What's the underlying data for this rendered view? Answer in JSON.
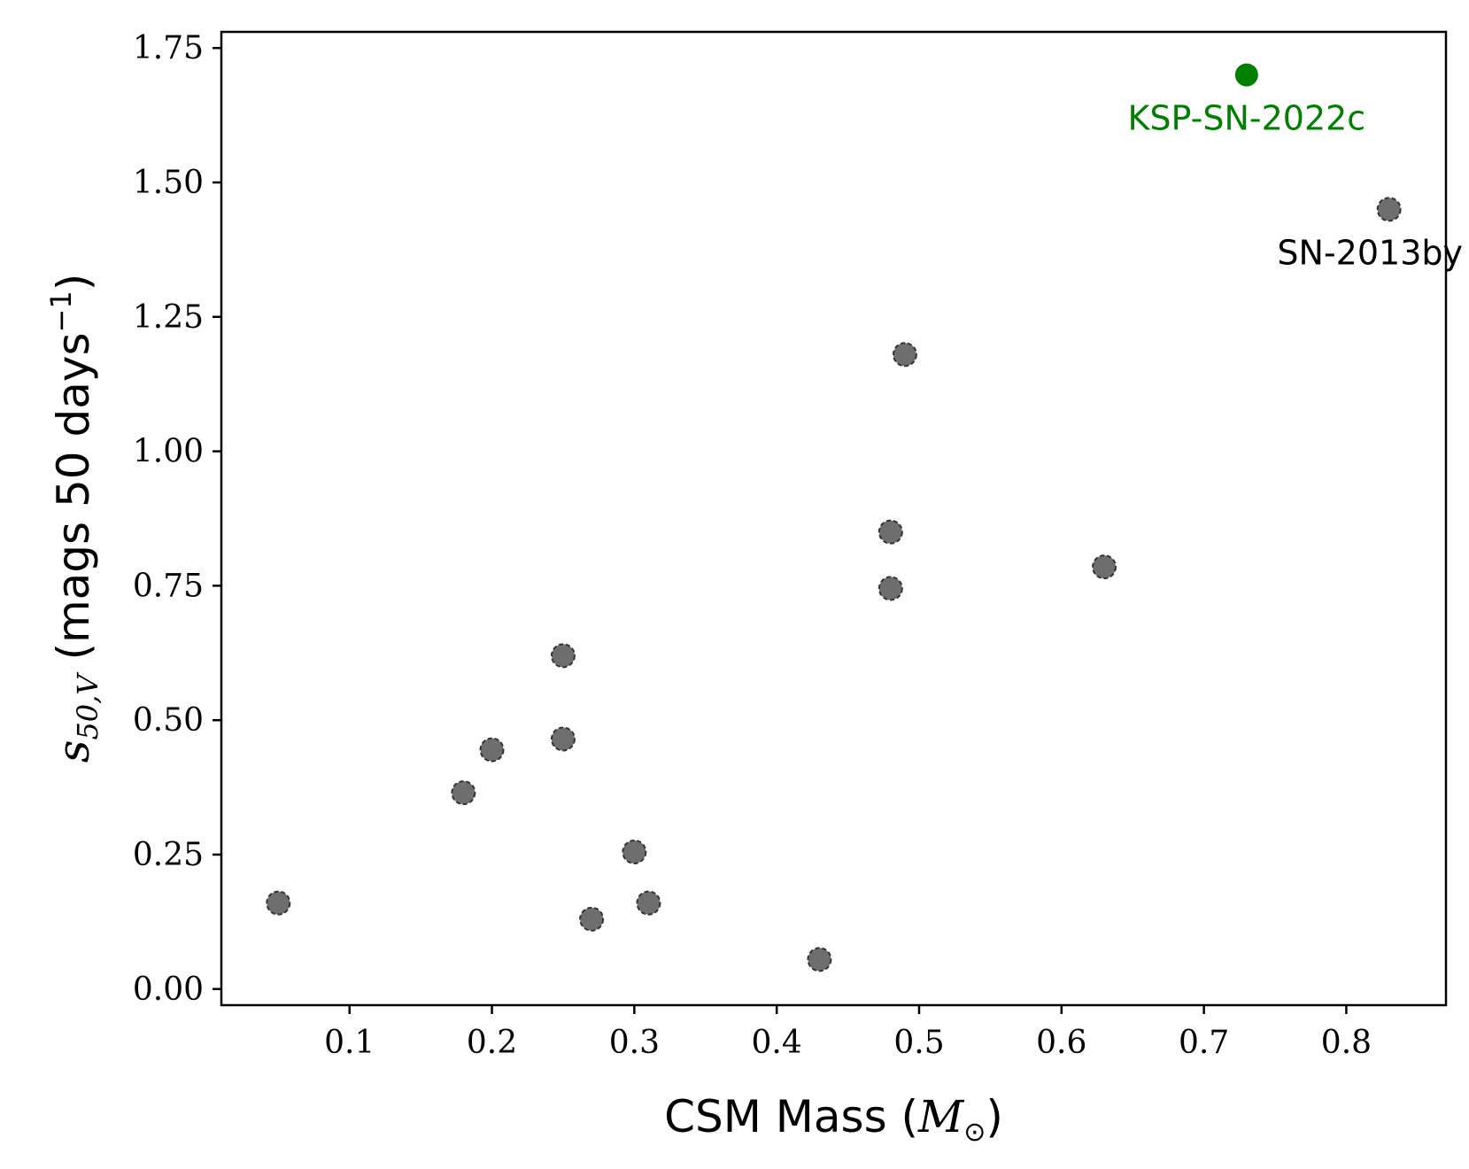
{
  "chart_data": {
    "type": "scatter",
    "xlabel": {
      "prefix": "CSM Mass (",
      "math": "M",
      "sub": "⊙",
      "suffix": ")"
    },
    "ylabel": {
      "math": "s",
      "sub": "50,V",
      "rest": "(mags 50 days",
      "sup": "−1",
      "close": ")"
    },
    "xlim": [
      0.01,
      0.87
    ],
    "ylim": [
      -0.03,
      1.78
    ],
    "xticks": [
      0.1,
      0.2,
      0.3,
      0.4,
      0.5,
      0.6,
      0.7,
      0.8
    ],
    "xtick_labels": [
      "0.1",
      "0.2",
      "0.3",
      "0.4",
      "0.5",
      "0.6",
      "0.7",
      "0.8"
    ],
    "yticks": [
      0.0,
      0.25,
      0.5,
      0.75,
      1.0,
      1.25,
      1.5,
      1.75
    ],
    "ytick_labels": [
      "0.00",
      "0.25",
      "0.50",
      "0.75",
      "1.00",
      "1.25",
      "1.50",
      "1.75"
    ],
    "grid": false,
    "series": [
      {
        "color": "#6e6e6e",
        "edgecolor": "#333333",
        "points": [
          {
            "x": 0.05,
            "y": 0.16
          },
          {
            "x": 0.18,
            "y": 0.365
          },
          {
            "x": 0.2,
            "y": 0.445
          },
          {
            "x": 0.25,
            "y": 0.62
          },
          {
            "x": 0.25,
            "y": 0.465
          },
          {
            "x": 0.27,
            "y": 0.13
          },
          {
            "x": 0.3,
            "y": 0.255
          },
          {
            "x": 0.31,
            "y": 0.16
          },
          {
            "x": 0.43,
            "y": 0.055
          },
          {
            "x": 0.48,
            "y": 0.85
          },
          {
            "x": 0.48,
            "y": 0.745
          },
          {
            "x": 0.49,
            "y": 1.18
          },
          {
            "x": 0.63,
            "y": 0.785
          },
          {
            "x": 0.83,
            "y": 1.45
          }
        ]
      },
      {
        "color": "#008000",
        "points": [
          {
            "x": 0.73,
            "y": 1.7
          }
        ]
      }
    ],
    "annotations": [
      {
        "text": "KSP-SN-2022c",
        "x": 0.73,
        "y": 1.7,
        "color": "#008000"
      },
      {
        "text": "SN-2013by",
        "x": 0.83,
        "y": 1.45,
        "color": "#000000"
      }
    ]
  }
}
